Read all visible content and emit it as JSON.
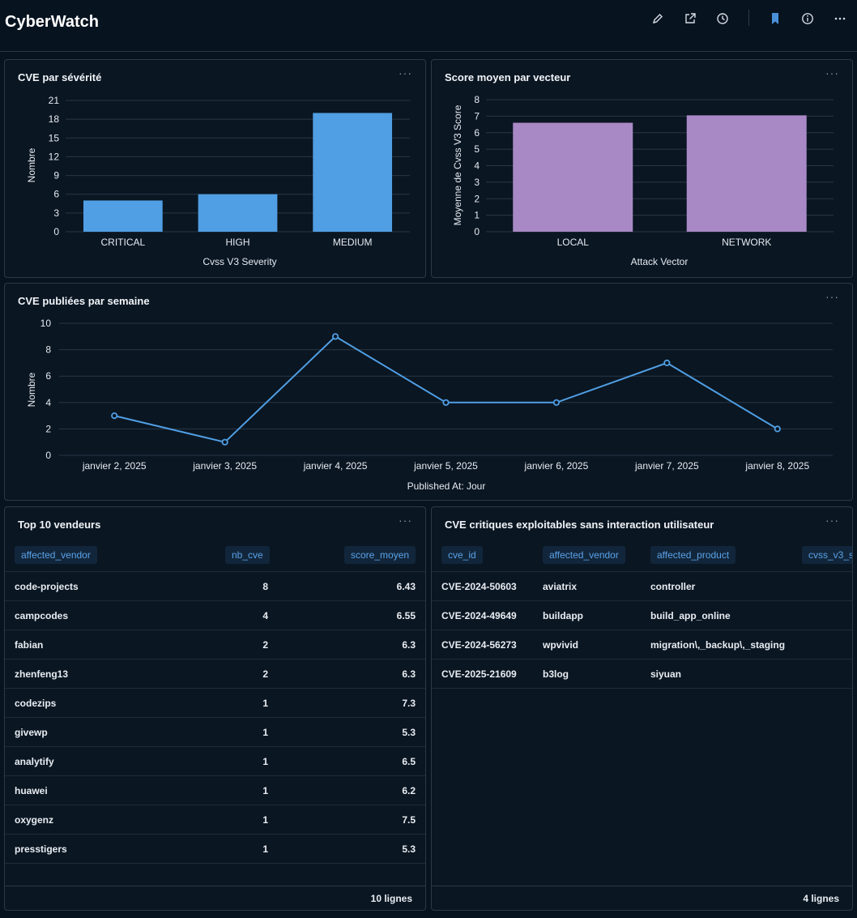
{
  "app": {
    "title": "CyberWatch",
    "toolbar_icons": [
      "edit-icon",
      "share-icon",
      "history-icon",
      "bookmark-icon",
      "info-icon",
      "more-icon"
    ],
    "accent": "#4a90d9"
  },
  "severity_card": {
    "title": "CVE par sévérité",
    "menu": "···",
    "chart_data": {
      "type": "bar",
      "categories": [
        "CRITICAL",
        "HIGH",
        "MEDIUM"
      ],
      "values": [
        5,
        6,
        19
      ],
      "xlabel": "Cvss V3 Severity",
      "ylabel": "Nombre",
      "ylim": [
        0,
        21
      ],
      "yticks": [
        "0",
        "3",
        "6",
        "9",
        "12",
        "15",
        "18",
        "21"
      ],
      "color": "#509ee3"
    }
  },
  "vector_card": {
    "title": "Score moyen par vecteur",
    "menu": "···",
    "chart_data": {
      "type": "bar",
      "categories": [
        "LOCAL",
        "NETWORK"
      ],
      "values": [
        6.6,
        7.05
      ],
      "xlabel": "Attack Vector",
      "ylabel": "Moyenne de Cvss V3 Score",
      "ylim": [
        0,
        8
      ],
      "yticks": [
        "0",
        "1",
        "2",
        "3",
        "4",
        "5",
        "6",
        "7",
        "8"
      ],
      "color": "#a989c5"
    }
  },
  "weekly_card": {
    "title": "CVE publiées par semaine",
    "menu": "···",
    "chart_data": {
      "type": "line",
      "categories": [
        "janvier 2, 2025",
        "janvier 3, 2025",
        "janvier 4, 2025",
        "janvier 5, 2025",
        "janvier 6, 2025",
        "janvier 7, 2025",
        "janvier 8, 2025"
      ],
      "values": [
        3,
        1,
        9,
        4,
        4,
        7,
        2
      ],
      "xlabel": "Published At: Jour",
      "ylabel": "Nombre",
      "ylim": [
        0,
        10
      ],
      "yticks": [
        "0",
        "2",
        "4",
        "6",
        "8",
        "10"
      ],
      "color": "#509ee3"
    }
  },
  "vendors_card": {
    "title": "Top 10 vendeurs",
    "menu": "···",
    "columns": [
      "affected_vendor",
      "nb_cve",
      "score_moyen"
    ],
    "rows": [
      [
        "code-projects",
        "8",
        "6.43"
      ],
      [
        "campcodes",
        "4",
        "6.55"
      ],
      [
        "fabian",
        "2",
        "6.3"
      ],
      [
        "zhenfeng13",
        "2",
        "6.3"
      ],
      [
        "codezips",
        "1",
        "7.3"
      ],
      [
        "givewp",
        "1",
        "5.3"
      ],
      [
        "analytify",
        "1",
        "6.5"
      ],
      [
        "huawei",
        "1",
        "6.2"
      ],
      [
        "oxygenz",
        "1",
        "7.5"
      ],
      [
        "presstigers",
        "1",
        "5.3"
      ]
    ],
    "footer": "10 lignes"
  },
  "critical_card": {
    "title": "CVE critiques exploitables sans interaction utilisateur",
    "menu": "···",
    "columns": [
      "cve_id",
      "affected_vendor",
      "affected_product",
      "cvss_v3_s"
    ],
    "rows": [
      [
        "CVE-2024-50603",
        "aviatrix",
        "controller"
      ],
      [
        "CVE-2024-49649",
        "buildapp",
        "build_app_online"
      ],
      [
        "CVE-2024-56273",
        "wpvivid",
        "migration\\,_backup\\,_staging"
      ],
      [
        "CVE-2025-21609",
        "b3log",
        "siyuan"
      ]
    ],
    "footer": "4 lignes"
  }
}
